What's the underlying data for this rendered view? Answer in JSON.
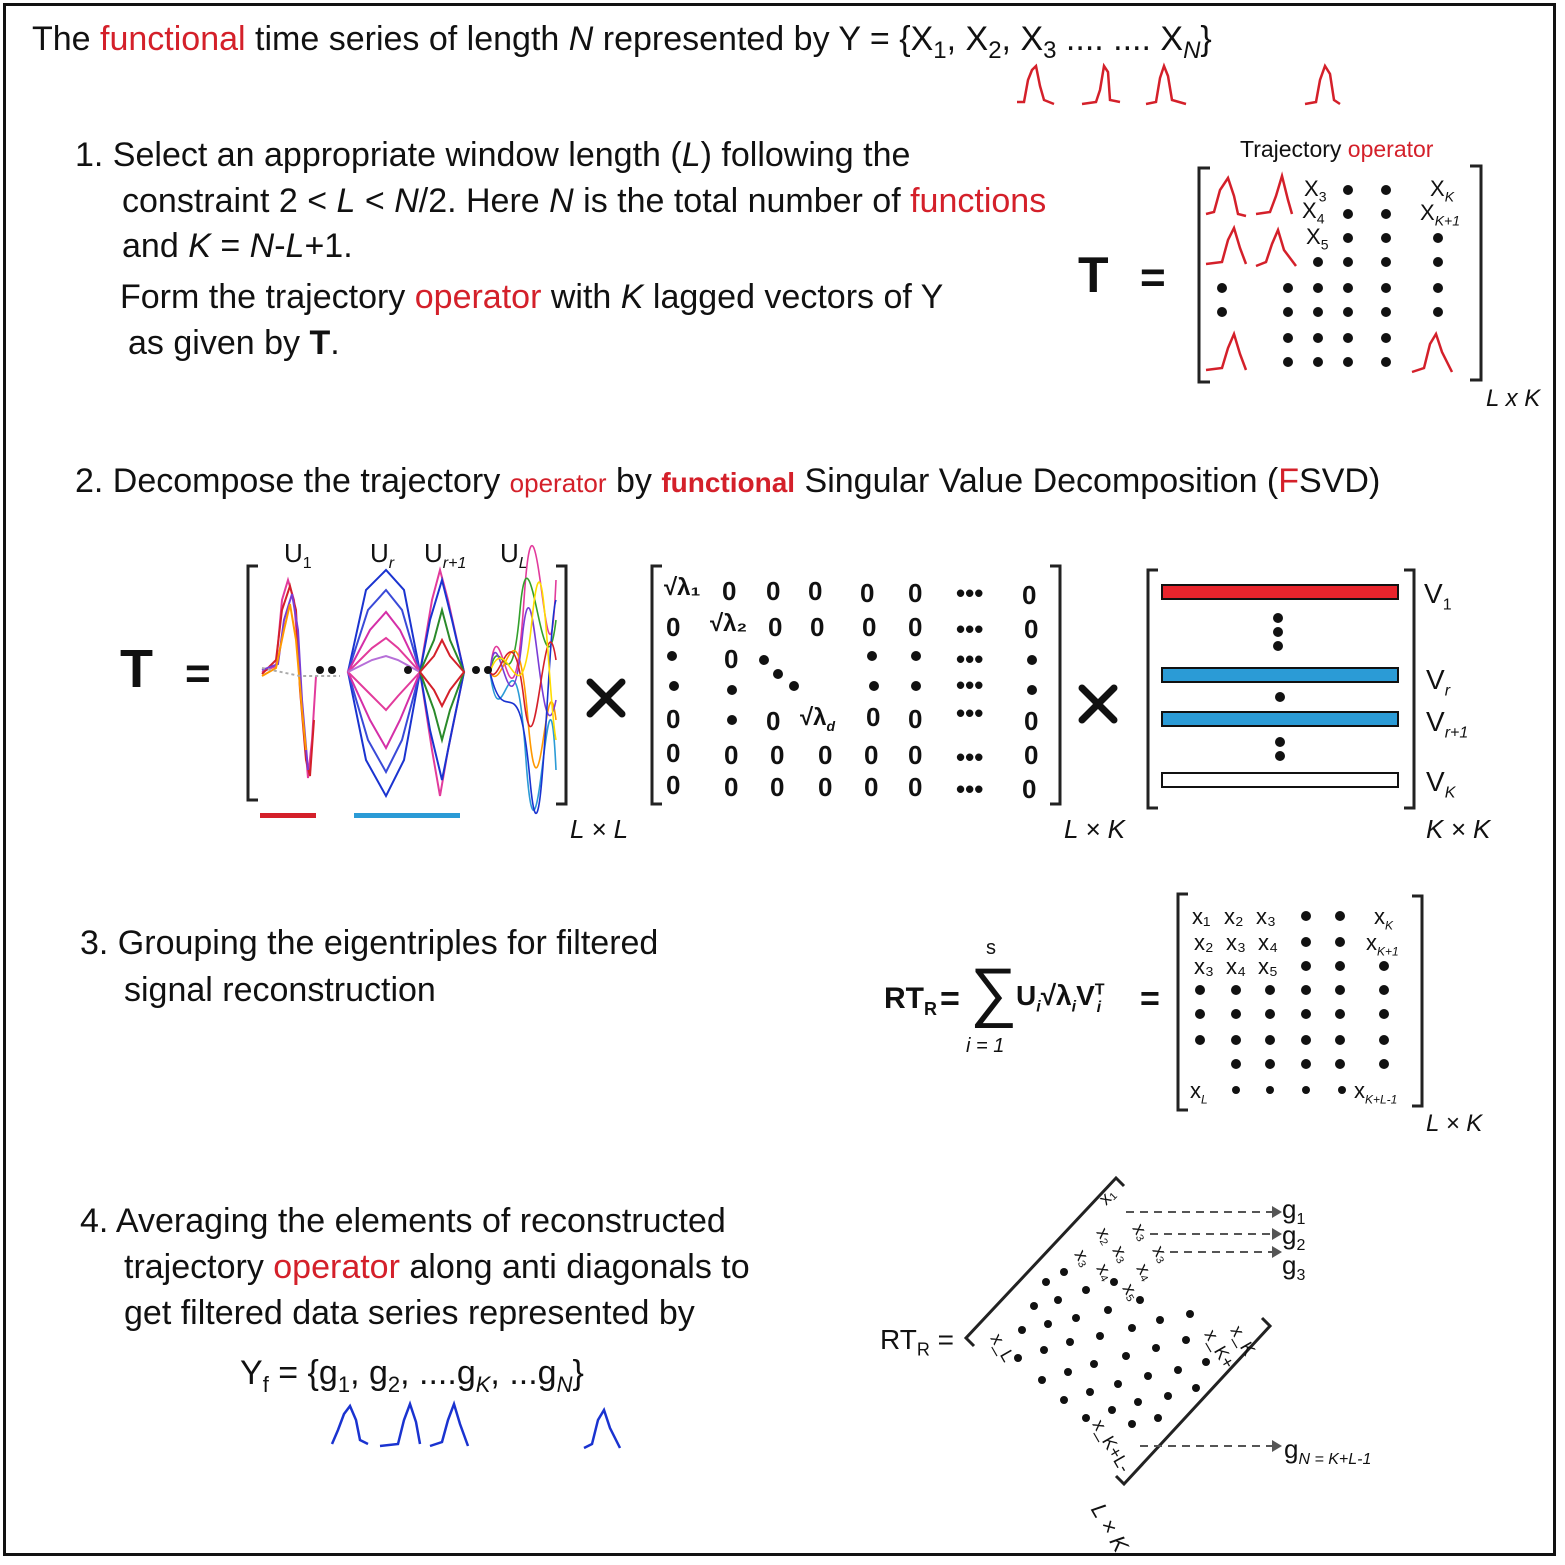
{
  "colors": {
    "red": "#d4202a",
    "blue": "#1a33d0",
    "cyan": "#2b9bd6",
    "black": "#111111"
  },
  "header": {
    "p1": "The ",
    "functional": "functional",
    "p2": " time series of length ",
    "N": "N",
    "p3": " represented by Y = {X",
    "s1": "1",
    "c1": ", X",
    "s2": "2",
    "c2": ", X",
    "s3": "3",
    "dots": " .... .... X",
    "sN": "N",
    "close": "}"
  },
  "step1": {
    "l1a": "1. Select an appropriate window length (",
    "L": "L",
    "l1b": ") following the",
    "l2a": "constraint 2 < ",
    "l2L": "L",
    "l2b": " < ",
    "l2N": "N",
    "l2c": "/2. Here ",
    "l2N2": "N",
    "l2d": " is the total number of ",
    "functions": "functions",
    "l3a": "and ",
    "l3K": "K",
    "l3b": " = ",
    "l3N": "N",
    "l3c": "-",
    "l3L": "L",
    "l3d": "+1.",
    "l4a": "Form the trajectory ",
    "operator": "operator",
    "l4b": " with ",
    "l4K": "K",
    "l4c": " lagged vectors of Y",
    "l5a": "as given by ",
    "l5T": "T",
    "l5b": ".",
    "matrix_title_a": "Trajectory ",
    "matrix_title_b": "operator",
    "T": "T",
    "eq": "=",
    "dim": "L x K",
    "x3": "X",
    "x3s": "3",
    "x4": "X",
    "x4s": "4",
    "x5": "X",
    "x5s": "5",
    "xk": "X",
    "xks": "K",
    "xk1": "X",
    "xk1s": "K+1"
  },
  "step2": {
    "l1a": "2. Decompose the trajectory ",
    "operator": "operator",
    "l1b": " by ",
    "functional": "functional",
    "l1c": " Singular Value Decomposition (",
    "F": "F",
    "l1d": "SVD)",
    "T": "T",
    "eq": "=",
    "times": "×",
    "u1": "U",
    "u1s": "1",
    "ur": "U",
    "urs": "r",
    "ur1": "U",
    "ur1s": "r+1",
    "ul": "U",
    "uls": "L",
    "dimU": "L × L",
    "dimS": "L × K",
    "dimV": "K × K",
    "v1": "V",
    "v1s": "1",
    "vr": "V",
    "vrs": "r",
    "vr1": "V",
    "vr1s": "r+1",
    "vk": "V",
    "vks": "K",
    "sig1": "√λ₁",
    "sig2": "√λ₂",
    "sigd": "√λ",
    "sigds": "d",
    "zero": "0",
    "dots3": "•••"
  },
  "step3": {
    "l1": "3. Grouping the eigentriples for filtered",
    "l2": "signal reconstruction",
    "rt": "RT",
    "rts": "R",
    "eq": "=",
    "sum": "∑",
    "sup": "s",
    "sub": "i = 1",
    "term": "U",
    "termi": "i",
    "sq": "√λ",
    "sqi": "i",
    "vt": "V",
    "vti": "i",
    "vtT": "T",
    "dim": "L × K",
    "x1": "x₁",
    "x2": "x₂",
    "x3": "x₃",
    "x4": "x₄",
    "x5": "x₅",
    "xk": "x",
    "xks": "K",
    "xk1": "x",
    "xk1s": "K+1",
    "xl": "x",
    "xls": "L",
    "xkl": "x",
    "xkls": "K+L-1"
  },
  "step4": {
    "l1": "4. Averaging the elements of reconstructed",
    "l2a": "trajectory ",
    "operator": "operator",
    "l2b": " along anti diagonals to",
    "l3": "get filtered data series represented by",
    "yf": "Y",
    "yfs": "f",
    "yf_eq": " = {g",
    "g1s": "1",
    "g2": ", g",
    "g2s": "2",
    "gk": ", ....g",
    "gks": "K",
    "gn": ", ...g",
    "gns": "N",
    "close": "}",
    "rt": "RT",
    "rts": "R",
    "eq": " =",
    "g1": "g",
    "g1l": "1",
    "g2l": "g",
    "g2ls": "2",
    "g3": "g",
    "g3s": "3",
    "gN": "g",
    "gNs": "N = K+L-1",
    "dim": "L × K"
  }
}
